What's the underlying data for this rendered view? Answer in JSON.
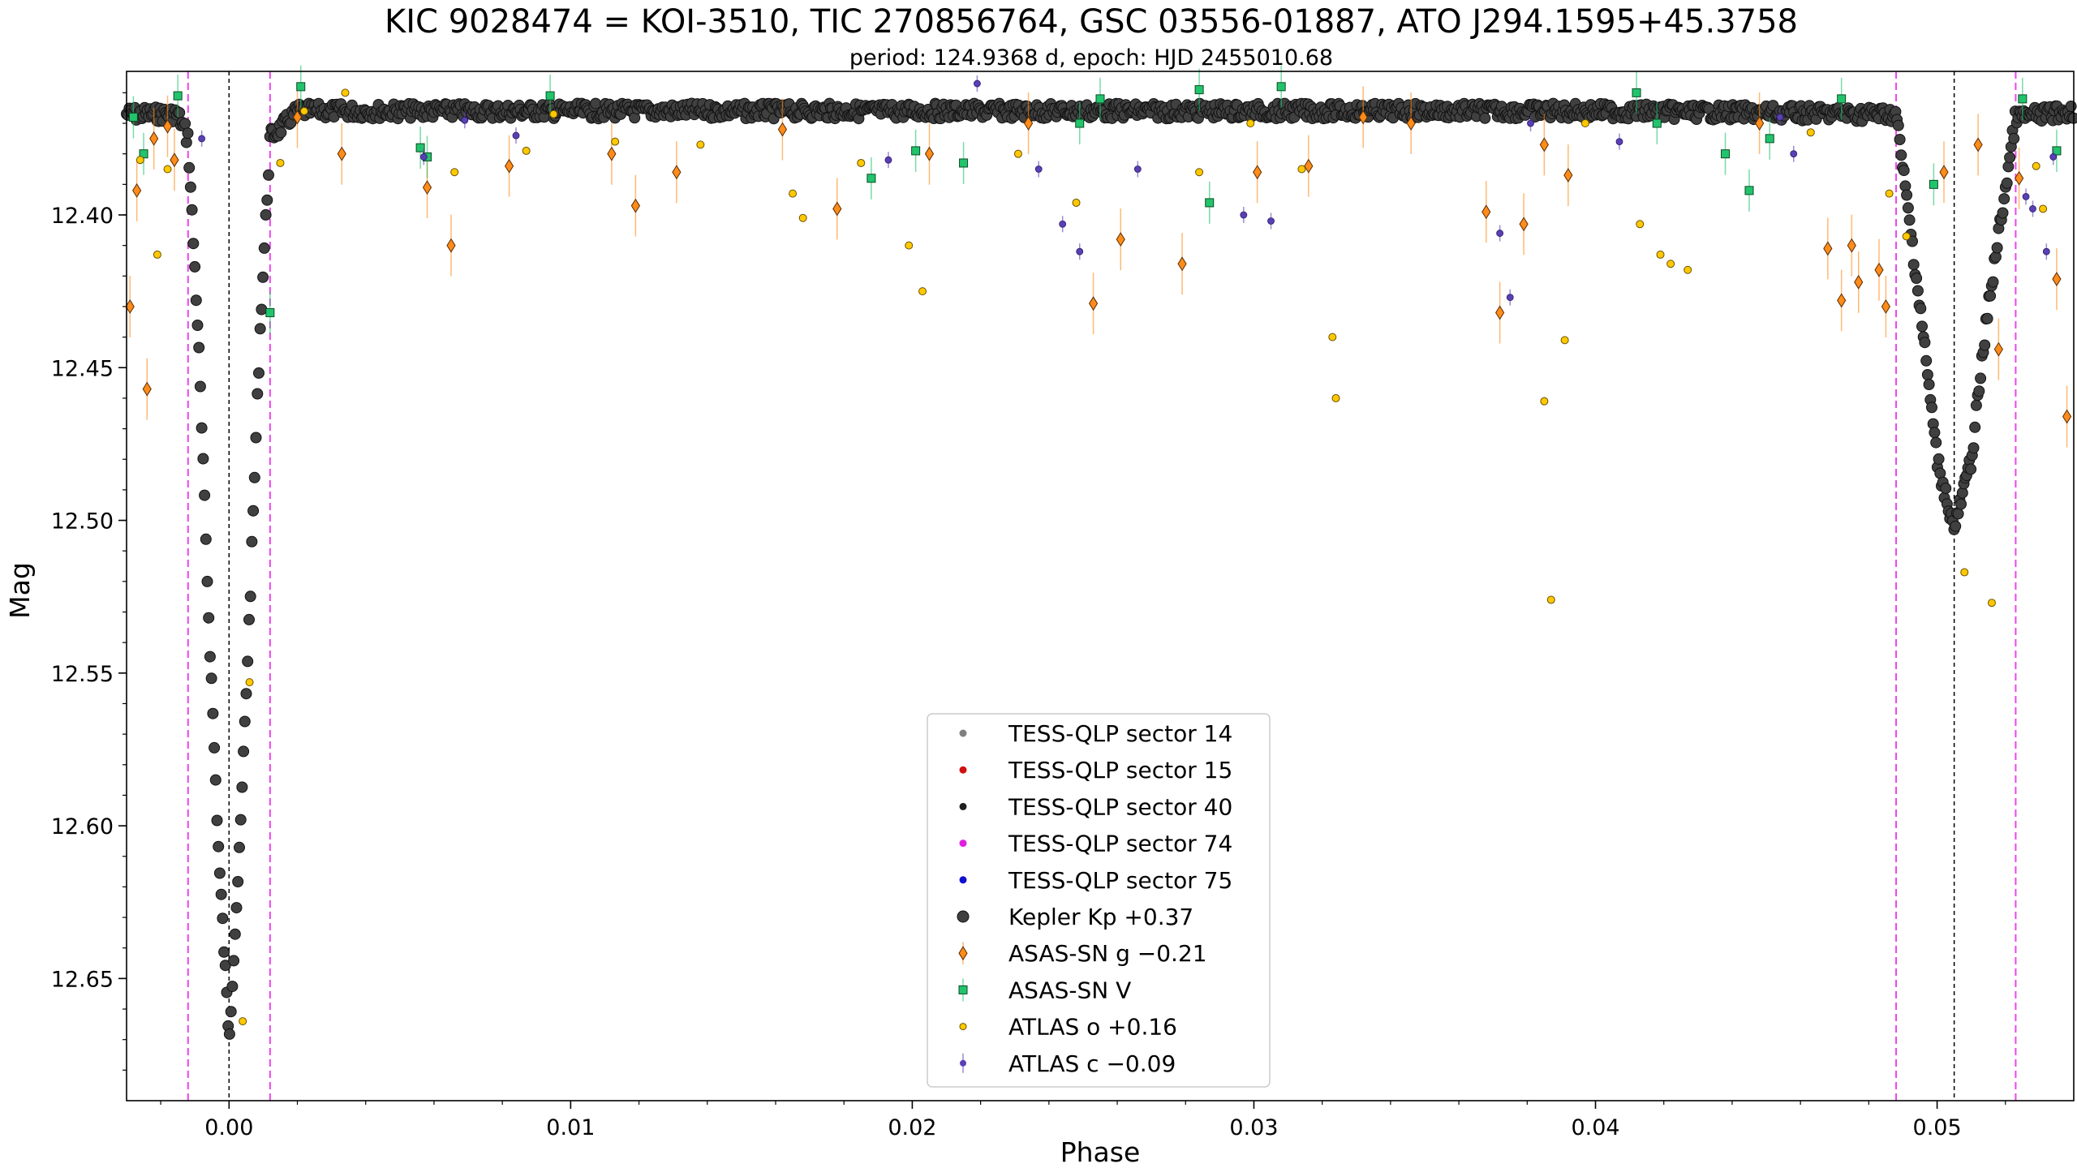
{
  "chart_data": {
    "type": "scatter",
    "title": "KIC 9028474 = KOI-3510, TIC 270856764, GSC 03556-01887, ATO J294.1595+45.3758",
    "subtitle": "period: 124.9368 d, epoch: HJD 2455010.68",
    "xlabel": "Phase",
    "ylabel": "Mag",
    "xlim": [
      -0.003,
      0.054
    ],
    "ylim": [
      12.69,
      12.353
    ],
    "y_inverted": true,
    "xticks": [
      0.0,
      0.01,
      0.02,
      0.03,
      0.04,
      0.05
    ],
    "xtick_labels": [
      "0.00",
      "0.01",
      "0.02",
      "0.03",
      "0.04",
      "0.05"
    ],
    "yticks": [
      12.4,
      12.45,
      12.5,
      12.55,
      12.6,
      12.65
    ],
    "ytick_labels": [
      "12.40",
      "12.45",
      "12.50",
      "12.55",
      "12.60",
      "12.65"
    ],
    "legend_position": "bottom-center",
    "vertical_lines": {
      "eclipse_centers": [
        0.0,
        0.0505
      ],
      "eclipse_edges": [
        -0.0012,
        0.0012,
        0.0488,
        0.0523
      ]
    },
    "colors": {
      "kepler": "#404040",
      "asas_g": "#ff8c1a",
      "asas_v": "#21c46c",
      "atlas_o": "#ffc800",
      "atlas_c": "#5a3fb5",
      "eclipse_center_line": "#000000",
      "eclipse_edge_line": "#ee44ee"
    },
    "legend": [
      {
        "label": "TESS-QLP sector 14",
        "marker": "dot",
        "color": "#808080"
      },
      {
        "label": "TESS-QLP sector 15",
        "marker": "dot",
        "color": "#d01010"
      },
      {
        "label": "TESS-QLP sector 40",
        "marker": "dot",
        "color": "#202020"
      },
      {
        "label": "TESS-QLP sector 74",
        "marker": "dot",
        "color": "#e020e0"
      },
      {
        "label": "TESS-QLP sector 75",
        "marker": "dot",
        "color": "#1010d0"
      },
      {
        "label": "Kepler Kp +0.37",
        "marker": "circle",
        "color": "#404040"
      },
      {
        "label": "ASAS-SN g −0.21",
        "marker": "diamond",
        "color": "#ff8c1a"
      },
      {
        "label": "ASAS-SN V",
        "marker": "square",
        "color": "#21c46c"
      },
      {
        "label": "ATLAS o +0.16",
        "marker": "small-circle",
        "color": "#ffc800"
      },
      {
        "label": "ATLAS c −0.09",
        "marker": "small-dot",
        "color": "#5a3fb5"
      }
    ],
    "series": [
      {
        "name": "Kepler Kp +0.37",
        "baseline_mag": 12.367,
        "primary_eclipse": {
          "center": 0.0,
          "depth_mag": 12.669,
          "ingress": -0.0012,
          "egress": 0.0012
        },
        "secondary_eclipse": {
          "center": 0.0505,
          "depth_mag": 12.503,
          "ingress": 0.0488,
          "egress": 0.0523
        },
        "x": [
          -0.003,
          -0.0015,
          -0.0012,
          -0.0009,
          -0.0006,
          -0.0003,
          0.0,
          0.0003,
          0.0006,
          0.0009,
          0.0012,
          0.002,
          0.01,
          0.02,
          0.03,
          0.04,
          0.0488,
          0.0495,
          0.05,
          0.0505,
          0.051,
          0.0515,
          0.0523,
          0.054
        ],
        "y": [
          12.367,
          12.367,
          12.375,
          12.44,
          12.53,
          12.61,
          12.669,
          12.61,
          12.53,
          12.44,
          12.375,
          12.366,
          12.366,
          12.366,
          12.366,
          12.366,
          12.367,
          12.43,
          12.48,
          12.503,
          12.48,
          12.43,
          12.368,
          12.366
        ]
      },
      {
        "name": "ASAS-SN g −0.21",
        "x": [
          -0.0029,
          -0.0027,
          -0.0024,
          -0.0022,
          -0.0018,
          -0.0016,
          0.002,
          0.0033,
          0.0058,
          0.0065,
          0.0082,
          0.0112,
          0.0119,
          0.0131,
          0.0162,
          0.0178,
          0.0205,
          0.0234,
          0.0253,
          0.0261,
          0.0279,
          0.0301,
          0.0316,
          0.0332,
          0.0346,
          0.0368,
          0.0372,
          0.0379,
          0.0385,
          0.0392,
          0.0448,
          0.0468,
          0.0472,
          0.0475,
          0.0477,
          0.0483,
          0.0485,
          0.0502,
          0.0512,
          0.0518,
          0.0524,
          0.0535,
          0.0538
        ],
        "y": [
          12.43,
          12.392,
          12.457,
          12.375,
          12.371,
          12.382,
          12.368,
          12.38,
          12.391,
          12.41,
          12.384,
          12.38,
          12.397,
          12.386,
          12.372,
          12.398,
          12.38,
          12.37,
          12.429,
          12.408,
          12.416,
          12.386,
          12.384,
          12.368,
          12.37,
          12.399,
          12.432,
          12.403,
          12.377,
          12.387,
          12.37,
          12.411,
          12.428,
          12.41,
          12.422,
          12.418,
          12.43,
          12.386,
          12.377,
          12.444,
          12.388,
          12.421,
          12.466
        ]
      },
      {
        "name": "ASAS-SN V",
        "x": [
          -0.0028,
          -0.0025,
          -0.0015,
          0.0012,
          0.0021,
          0.0056,
          0.0058,
          0.0094,
          0.0188,
          0.0201,
          0.0215,
          0.0249,
          0.0255,
          0.0284,
          0.0287,
          0.0308,
          0.0412,
          0.0418,
          0.0438,
          0.0445,
          0.0451,
          0.0472,
          0.0499,
          0.0525,
          0.0535
        ],
        "y": [
          12.368,
          12.38,
          12.361,
          12.432,
          12.358,
          12.378,
          12.381,
          12.361,
          12.388,
          12.379,
          12.383,
          12.37,
          12.362,
          12.359,
          12.396,
          12.358,
          12.36,
          12.37,
          12.38,
          12.392,
          12.375,
          12.362,
          12.39,
          12.362,
          12.379
        ]
      },
      {
        "name": "ATLAS o +0.16",
        "x": [
          -0.0026,
          -0.0021,
          -0.0018,
          0.0004,
          0.0006,
          0.0015,
          0.0022,
          0.0034,
          0.0066,
          0.0087,
          0.0095,
          0.0113,
          0.0138,
          0.0165,
          0.0168,
          0.0185,
          0.0199,
          0.0203,
          0.0231,
          0.0248,
          0.0284,
          0.0299,
          0.0314,
          0.0323,
          0.0324,
          0.0385,
          0.0387,
          0.0391,
          0.0397,
          0.0413,
          0.0419,
          0.0422,
          0.0427,
          0.0463,
          0.0486,
          0.0491,
          0.0508,
          0.0516,
          0.0529,
          0.0531
        ],
        "y": [
          12.382,
          12.413,
          12.385,
          12.664,
          12.553,
          12.383,
          12.366,
          12.36,
          12.386,
          12.379,
          12.367,
          12.376,
          12.377,
          12.393,
          12.401,
          12.383,
          12.41,
          12.425,
          12.38,
          12.396,
          12.386,
          12.37,
          12.385,
          12.44,
          12.46,
          12.461,
          12.526,
          12.441,
          12.37,
          12.403,
          12.413,
          12.416,
          12.418,
          12.373,
          12.393,
          12.407,
          12.517,
          12.527,
          12.384,
          12.398
        ]
      },
      {
        "name": "ATLAS c −0.09",
        "x": [
          -0.0008,
          0.0057,
          0.0069,
          0.0084,
          0.0193,
          0.0219,
          0.0237,
          0.0244,
          0.0249,
          0.0266,
          0.0297,
          0.0305,
          0.0381,
          0.0372,
          0.0375,
          0.0407,
          0.0454,
          0.0458,
          0.0526,
          0.0528,
          0.0532,
          0.0534
        ],
        "y": [
          12.375,
          12.381,
          12.369,
          12.374,
          12.382,
          12.357,
          12.385,
          12.403,
          12.412,
          12.385,
          12.4,
          12.402,
          12.37,
          12.406,
          12.427,
          12.376,
          12.368,
          12.38,
          12.394,
          12.398,
          12.412,
          12.381
        ]
      }
    ]
  }
}
